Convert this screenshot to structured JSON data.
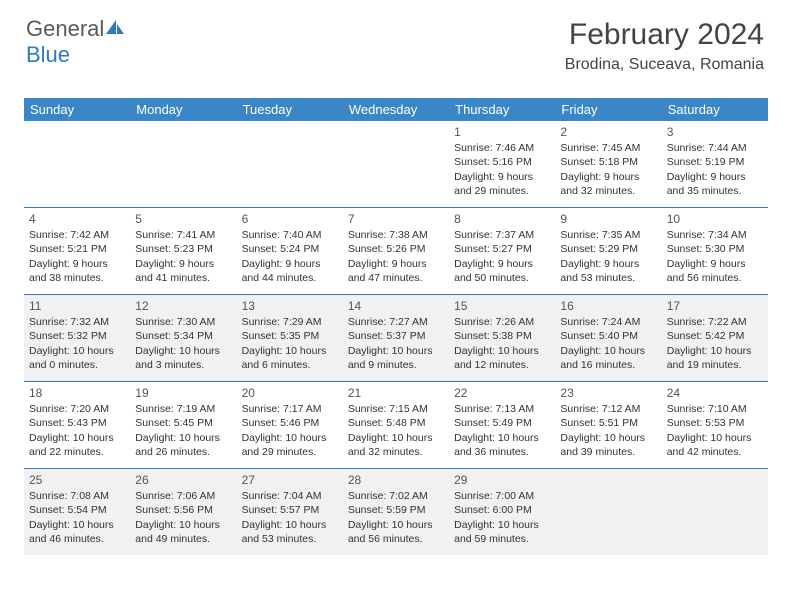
{
  "logo": {
    "text1": "General",
    "text2": "Blue"
  },
  "header": {
    "month": "February 2024",
    "location": "Brodina, Suceava, Romania"
  },
  "colors": {
    "header_bg": "#3b86c6",
    "divider": "#2e7bbf",
    "shade": "#f1f1f1",
    "page_bg": "#ffffff"
  },
  "dayLabels": [
    "Sunday",
    "Monday",
    "Tuesday",
    "Wednesday",
    "Thursday",
    "Friday",
    "Saturday"
  ],
  "weeks": [
    [
      null,
      null,
      null,
      null,
      {
        "n": "1",
        "sunrise": "Sunrise: 7:46 AM",
        "sunset": "Sunset: 5:16 PM",
        "daylight": "Daylight: 9 hours and 29 minutes."
      },
      {
        "n": "2",
        "sunrise": "Sunrise: 7:45 AM",
        "sunset": "Sunset: 5:18 PM",
        "daylight": "Daylight: 9 hours and 32 minutes."
      },
      {
        "n": "3",
        "sunrise": "Sunrise: 7:44 AM",
        "sunset": "Sunset: 5:19 PM",
        "daylight": "Daylight: 9 hours and 35 minutes."
      }
    ],
    [
      {
        "n": "4",
        "sunrise": "Sunrise: 7:42 AM",
        "sunset": "Sunset: 5:21 PM",
        "daylight": "Daylight: 9 hours and 38 minutes."
      },
      {
        "n": "5",
        "sunrise": "Sunrise: 7:41 AM",
        "sunset": "Sunset: 5:23 PM",
        "daylight": "Daylight: 9 hours and 41 minutes."
      },
      {
        "n": "6",
        "sunrise": "Sunrise: 7:40 AM",
        "sunset": "Sunset: 5:24 PM",
        "daylight": "Daylight: 9 hours and 44 minutes."
      },
      {
        "n": "7",
        "sunrise": "Sunrise: 7:38 AM",
        "sunset": "Sunset: 5:26 PM",
        "daylight": "Daylight: 9 hours and 47 minutes."
      },
      {
        "n": "8",
        "sunrise": "Sunrise: 7:37 AM",
        "sunset": "Sunset: 5:27 PM",
        "daylight": "Daylight: 9 hours and 50 minutes."
      },
      {
        "n": "9",
        "sunrise": "Sunrise: 7:35 AM",
        "sunset": "Sunset: 5:29 PM",
        "daylight": "Daylight: 9 hours and 53 minutes."
      },
      {
        "n": "10",
        "sunrise": "Sunrise: 7:34 AM",
        "sunset": "Sunset: 5:30 PM",
        "daylight": "Daylight: 9 hours and 56 minutes."
      }
    ],
    [
      {
        "n": "11",
        "sunrise": "Sunrise: 7:32 AM",
        "sunset": "Sunset: 5:32 PM",
        "daylight": "Daylight: 10 hours and 0 minutes."
      },
      {
        "n": "12",
        "sunrise": "Sunrise: 7:30 AM",
        "sunset": "Sunset: 5:34 PM",
        "daylight": "Daylight: 10 hours and 3 minutes."
      },
      {
        "n": "13",
        "sunrise": "Sunrise: 7:29 AM",
        "sunset": "Sunset: 5:35 PM",
        "daylight": "Daylight: 10 hours and 6 minutes."
      },
      {
        "n": "14",
        "sunrise": "Sunrise: 7:27 AM",
        "sunset": "Sunset: 5:37 PM",
        "daylight": "Daylight: 10 hours and 9 minutes."
      },
      {
        "n": "15",
        "sunrise": "Sunrise: 7:26 AM",
        "sunset": "Sunset: 5:38 PM",
        "daylight": "Daylight: 10 hours and 12 minutes."
      },
      {
        "n": "16",
        "sunrise": "Sunrise: 7:24 AM",
        "sunset": "Sunset: 5:40 PM",
        "daylight": "Daylight: 10 hours and 16 minutes."
      },
      {
        "n": "17",
        "sunrise": "Sunrise: 7:22 AM",
        "sunset": "Sunset: 5:42 PM",
        "daylight": "Daylight: 10 hours and 19 minutes."
      }
    ],
    [
      {
        "n": "18",
        "sunrise": "Sunrise: 7:20 AM",
        "sunset": "Sunset: 5:43 PM",
        "daylight": "Daylight: 10 hours and 22 minutes."
      },
      {
        "n": "19",
        "sunrise": "Sunrise: 7:19 AM",
        "sunset": "Sunset: 5:45 PM",
        "daylight": "Daylight: 10 hours and 26 minutes."
      },
      {
        "n": "20",
        "sunrise": "Sunrise: 7:17 AM",
        "sunset": "Sunset: 5:46 PM",
        "daylight": "Daylight: 10 hours and 29 minutes."
      },
      {
        "n": "21",
        "sunrise": "Sunrise: 7:15 AM",
        "sunset": "Sunset: 5:48 PM",
        "daylight": "Daylight: 10 hours and 32 minutes."
      },
      {
        "n": "22",
        "sunrise": "Sunrise: 7:13 AM",
        "sunset": "Sunset: 5:49 PM",
        "daylight": "Daylight: 10 hours and 36 minutes."
      },
      {
        "n": "23",
        "sunrise": "Sunrise: 7:12 AM",
        "sunset": "Sunset: 5:51 PM",
        "daylight": "Daylight: 10 hours and 39 minutes."
      },
      {
        "n": "24",
        "sunrise": "Sunrise: 7:10 AM",
        "sunset": "Sunset: 5:53 PM",
        "daylight": "Daylight: 10 hours and 42 minutes."
      }
    ],
    [
      {
        "n": "25",
        "sunrise": "Sunrise: 7:08 AM",
        "sunset": "Sunset: 5:54 PM",
        "daylight": "Daylight: 10 hours and 46 minutes."
      },
      {
        "n": "26",
        "sunrise": "Sunrise: 7:06 AM",
        "sunset": "Sunset: 5:56 PM",
        "daylight": "Daylight: 10 hours and 49 minutes."
      },
      {
        "n": "27",
        "sunrise": "Sunrise: 7:04 AM",
        "sunset": "Sunset: 5:57 PM",
        "daylight": "Daylight: 10 hours and 53 minutes."
      },
      {
        "n": "28",
        "sunrise": "Sunrise: 7:02 AM",
        "sunset": "Sunset: 5:59 PM",
        "daylight": "Daylight: 10 hours and 56 minutes."
      },
      {
        "n": "29",
        "sunrise": "Sunrise: 7:00 AM",
        "sunset": "Sunset: 6:00 PM",
        "daylight": "Daylight: 10 hours and 59 minutes."
      },
      null,
      null
    ]
  ],
  "shaded_weeks": [
    2,
    4
  ]
}
